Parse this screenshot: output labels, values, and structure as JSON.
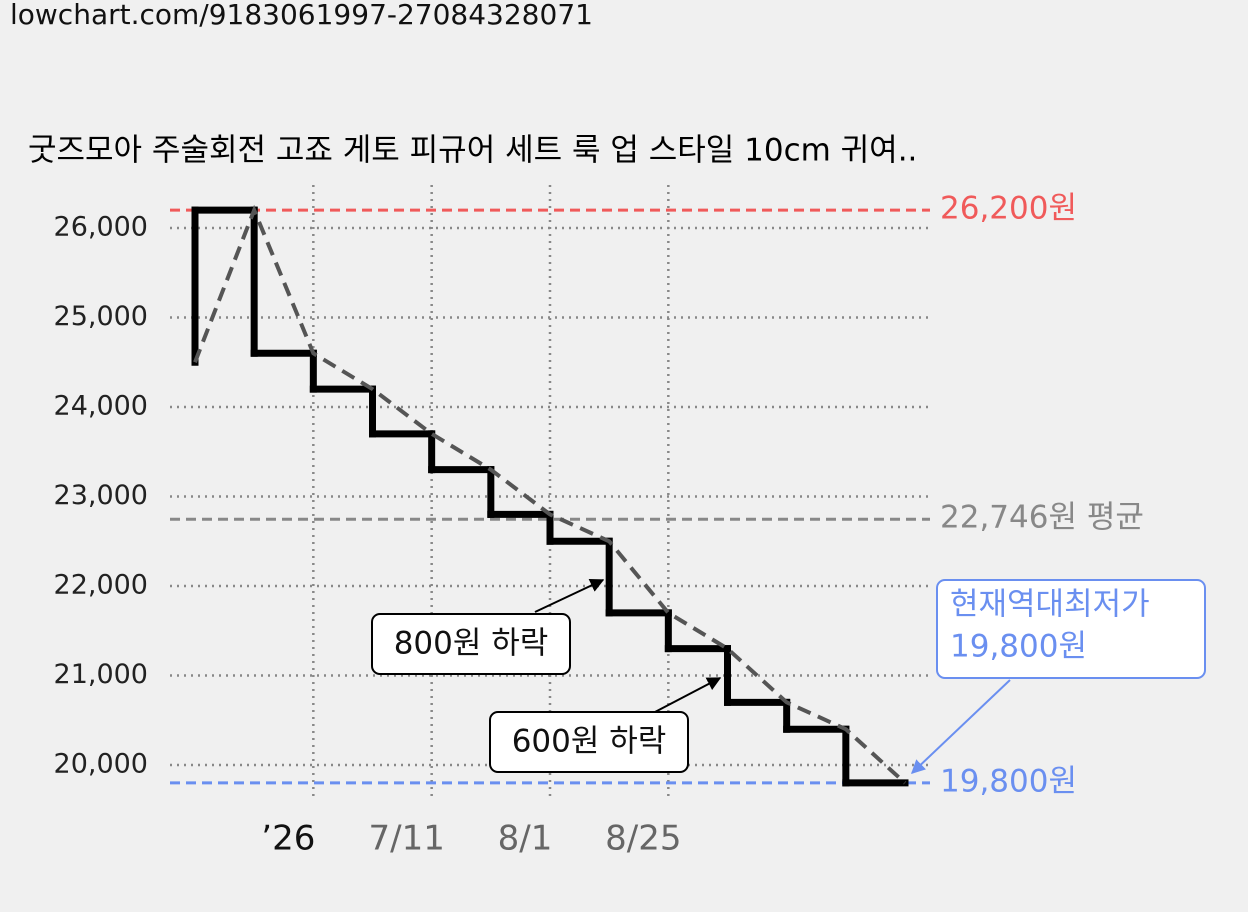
{
  "url": "lowchart.com/9183061997-27084328071",
  "chart_data": {
    "type": "step-line",
    "title": "굿즈모아 주술회전 고죠 게토 피규어 세트 룩 업 스타일 10cm 귀여..",
    "categories": [
      null,
      null,
      "’26",
      null,
      "7/11",
      null,
      "8/1",
      null,
      "8/25",
      null,
      null,
      null,
      null
    ],
    "values": [
      24500,
      26200,
      24600,
      24200,
      23700,
      23300,
      22800,
      22500,
      21700,
      21300,
      20700,
      20400,
      19800
    ],
    "color": "#000000",
    "trend_color": "#555555",
    "ylim": [
      19600,
      26500
    ],
    "yticks": [
      {
        "value": 20000,
        "label": "20,000"
      },
      {
        "value": 21000,
        "label": "21,000"
      },
      {
        "value": 22000,
        "label": "22,000"
      },
      {
        "value": 23000,
        "label": "23,000"
      },
      {
        "value": 24000,
        "label": "24,000"
      },
      {
        "value": 25000,
        "label": "25,000"
      },
      {
        "value": 26000,
        "label": "26,000"
      }
    ],
    "grid": true,
    "reference_lines": [
      {
        "value": 26200,
        "label": "26,200원",
        "color": "#f05a5a"
      },
      {
        "value": 22746,
        "label": "22,746원 평균",
        "color": "#888888"
      },
      {
        "value": 19800,
        "label": "19,800원",
        "color": "#6a8ff0"
      }
    ],
    "annotations": [
      {
        "text": "800원 하락"
      },
      {
        "text": "600원 하락"
      }
    ],
    "callout": {
      "lines": [
        "현재역대최저가",
        "19,800원"
      ],
      "color": "#6a8ff0"
    }
  }
}
